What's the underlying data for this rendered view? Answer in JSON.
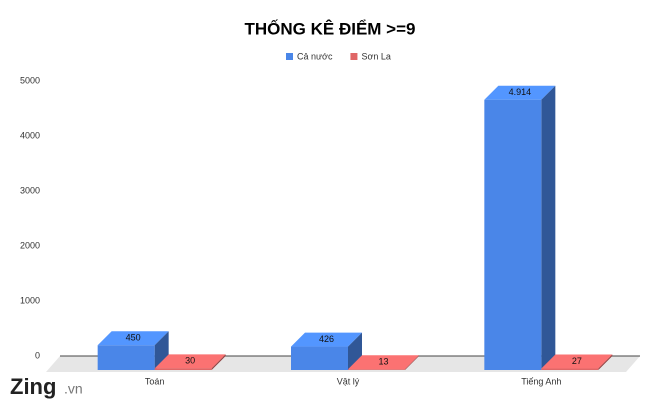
{
  "chart_data": {
    "type": "bar3d",
    "title": "THỐNG KÊ ĐIỂM >=9",
    "categories": [
      "Toán",
      "Vật lý",
      "Tiếng Anh"
    ],
    "series": [
      {
        "name": "Cả nước",
        "color": "#4a86e8",
        "values": [
          450,
          426,
          4914
        ],
        "value_labels": [
          "450",
          "426",
          "4.914"
        ]
      },
      {
        "name": "Sơn La",
        "color": "#e06666",
        "values": [
          30,
          13,
          27
        ],
        "value_labels": [
          "30",
          "13",
          "27"
        ]
      }
    ],
    "ylim": [
      0,
      5000
    ],
    "yticks": [
      0,
      1000,
      2000,
      3000,
      4000,
      5000
    ],
    "grid": false,
    "legend": "top"
  },
  "logo": {
    "brand": "Zing",
    "suffix": ".vn"
  }
}
